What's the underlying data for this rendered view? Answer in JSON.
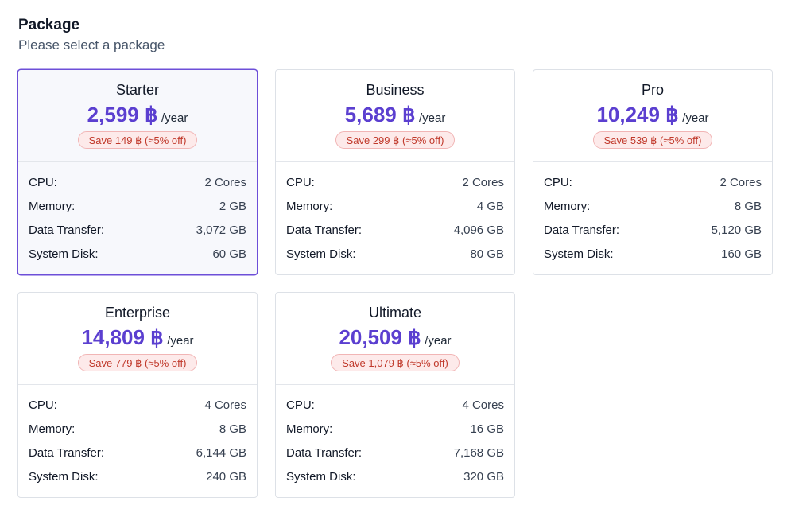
{
  "header": {
    "title": "Package",
    "subtitle": "Please select a package"
  },
  "spec_labels": {
    "cpu": "CPU:",
    "memory": "Memory:",
    "transfer": "Data Transfer:",
    "disk": "System Disk:"
  },
  "packages": [
    {
      "name": "Starter",
      "price": "2,599 ฿",
      "period": "/year",
      "save": "Save 149 ฿ (≈5% off)",
      "selected": true,
      "cpu": "2 Cores",
      "memory": "2 GB",
      "transfer": "3,072 GB",
      "disk": "60 GB"
    },
    {
      "name": "Business",
      "price": "5,689 ฿",
      "period": "/year",
      "save": "Save 299 ฿ (≈5% off)",
      "selected": false,
      "cpu": "2 Cores",
      "memory": "4 GB",
      "transfer": "4,096 GB",
      "disk": "80 GB"
    },
    {
      "name": "Pro",
      "price": "10,249 ฿",
      "period": "/year",
      "save": "Save 539 ฿ (≈5% off)",
      "selected": false,
      "cpu": "2 Cores",
      "memory": "8 GB",
      "transfer": "5,120 GB",
      "disk": "160 GB"
    },
    {
      "name": "Enterprise",
      "price": "14,809 ฿",
      "period": "/year",
      "save": "Save 779 ฿ (≈5% off)",
      "selected": false,
      "cpu": "4 Cores",
      "memory": "8 GB",
      "transfer": "6,144 GB",
      "disk": "240 GB"
    },
    {
      "name": "Ultimate",
      "price": "20,509 ฿",
      "period": "/year",
      "save": "Save 1,079 ฿ (≈5% off)",
      "selected": false,
      "cpu": "4 Cores",
      "memory": "16 GB",
      "transfer": "7,168 GB",
      "disk": "320 GB"
    }
  ],
  "colors": {
    "accent": "#5b3fd0",
    "selected_border": "#6d4fd8",
    "badge_text": "#c0392b",
    "badge_bg": "#fdeaea"
  }
}
